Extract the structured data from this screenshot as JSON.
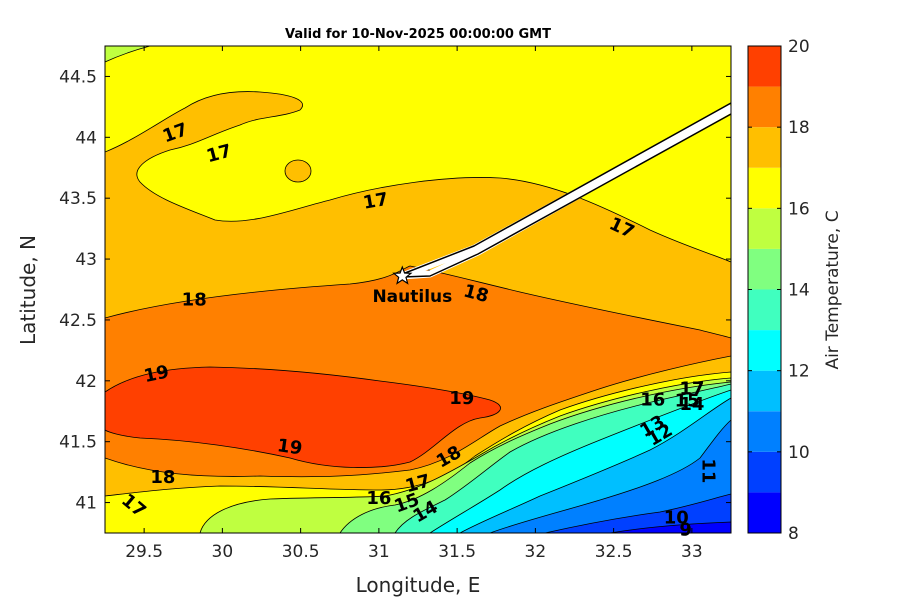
{
  "chart_data": {
    "type": "heatmap",
    "title": "Valid for 10-Nov-2025 00:00:00 GMT",
    "xlabel": "Longitude, E",
    "ylabel": "Latitude, N",
    "xlim": [
      29.25,
      33.25
    ],
    "ylim": [
      40.75,
      44.75
    ],
    "xticks": [
      "29.5",
      "30",
      "30.5",
      "31",
      "31.5",
      "32",
      "32.5",
      "33"
    ],
    "yticks": [
      "41",
      "41.5",
      "42",
      "42.5",
      "43",
      "43.5",
      "44",
      "44.5"
    ],
    "colorbar": {
      "label": "Air Temperature, C",
      "range": [
        8,
        20
      ],
      "ticks": [
        "8",
        "10",
        "12",
        "14",
        "16",
        "18",
        "20"
      ],
      "levels": [
        {
          "from": 8,
          "to": 9,
          "color": "#0000ff"
        },
        {
          "from": 9,
          "to": 10,
          "color": "#0040ff"
        },
        {
          "from": 10,
          "to": 11,
          "color": "#0080ff"
        },
        {
          "from": 11,
          "to": 12,
          "color": "#00bfff"
        },
        {
          "from": 12,
          "to": 13,
          "color": "#00ffff"
        },
        {
          "from": 13,
          "to": 14,
          "color": "#40ffbf"
        },
        {
          "from": 14,
          "to": 15,
          "color": "#80ff80"
        },
        {
          "from": 15,
          "to": 16,
          "color": "#bfff40"
        },
        {
          "from": 16,
          "to": 17,
          "color": "#ffff00"
        },
        {
          "from": 17,
          "to": 18,
          "color": "#ffbf00"
        },
        {
          "from": 18,
          "to": 19,
          "color": "#ff8000"
        },
        {
          "from": 19,
          "to": 20,
          "color": "#ff4000"
        }
      ]
    },
    "contour_labels": [
      {
        "text": "17",
        "lon": 29.7,
        "lat": 44.03,
        "angle": -20
      },
      {
        "text": "17",
        "lon": 29.98,
        "lat": 43.86,
        "angle": -15
      },
      {
        "text": "17",
        "lon": 30.98,
        "lat": 43.47,
        "angle": -10
      },
      {
        "text": "17",
        "lon": 32.55,
        "lat": 43.25,
        "angle": 25
      },
      {
        "text": "18",
        "lon": 29.82,
        "lat": 42.66,
        "angle": 0
      },
      {
        "text": "18",
        "lon": 31.62,
        "lat": 42.71,
        "angle": 15
      },
      {
        "text": "19",
        "lon": 29.58,
        "lat": 42.05,
        "angle": -12
      },
      {
        "text": "19",
        "lon": 31.53,
        "lat": 41.85,
        "angle": 0
      },
      {
        "text": "19",
        "lon": 30.43,
        "lat": 41.45,
        "angle": 8
      },
      {
        "text": "18",
        "lon": 29.62,
        "lat": 41.2,
        "angle": 0
      },
      {
        "text": "17",
        "lon": 29.43,
        "lat": 40.97,
        "angle": 40
      },
      {
        "text": "16",
        "lon": 31.0,
        "lat": 41.03,
        "angle": 0
      },
      {
        "text": "17",
        "lon": 31.25,
        "lat": 41.15,
        "angle": -15
      },
      {
        "text": "18",
        "lon": 31.45,
        "lat": 41.37,
        "angle": -30
      },
      {
        "text": "15",
        "lon": 31.18,
        "lat": 40.99,
        "angle": -20
      },
      {
        "text": "14",
        "lon": 31.3,
        "lat": 40.92,
        "angle": -30
      },
      {
        "text": "16",
        "lon": 32.75,
        "lat": 41.84,
        "angle": 0
      },
      {
        "text": "17",
        "lon": 33.0,
        "lat": 41.93,
        "angle": 0
      },
      {
        "text": "15",
        "lon": 32.97,
        "lat": 41.83,
        "angle": 0
      },
      {
        "text": "14",
        "lon": 33.0,
        "lat": 41.8,
        "angle": 0
      },
      {
        "text": "13",
        "lon": 32.75,
        "lat": 41.62,
        "angle": -30
      },
      {
        "text": "12",
        "lon": 32.8,
        "lat": 41.55,
        "angle": -30
      },
      {
        "text": "11",
        "lon": 33.1,
        "lat": 41.26,
        "angle": 90
      },
      {
        "text": "10",
        "lon": 32.9,
        "lat": 40.87,
        "angle": 0
      },
      {
        "text": "9",
        "lon": 32.96,
        "lat": 40.77,
        "angle": 0
      }
    ],
    "marker": {
      "name": "Nautilus",
      "lon": 31.15,
      "lat": 42.86
    }
  }
}
